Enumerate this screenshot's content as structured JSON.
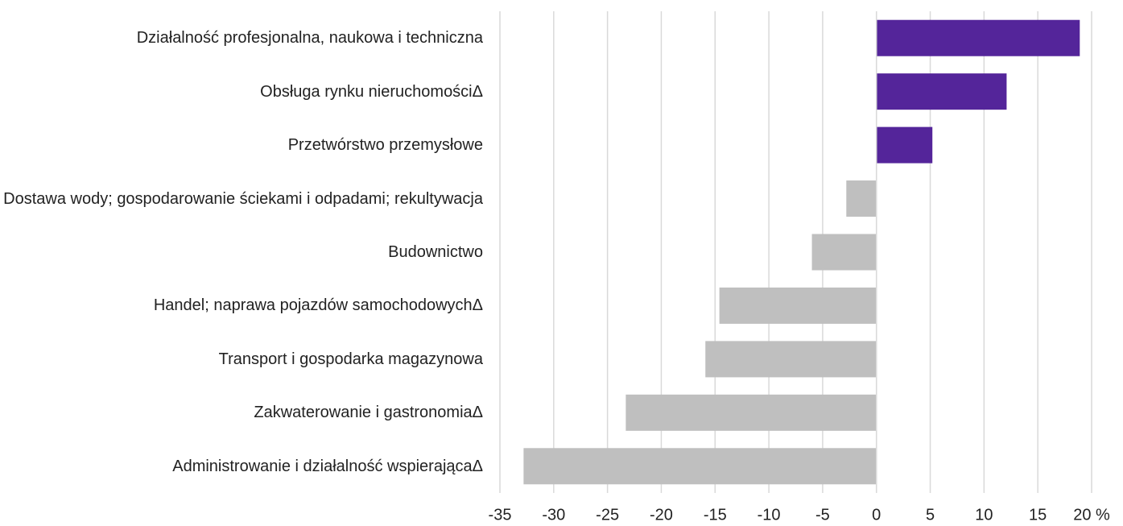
{
  "chart_data": {
    "type": "bar",
    "orientation": "horizontal",
    "categories": [
      "Działalność profesjonalna, naukowa i techniczna",
      "Obsługa rynku nieruchomościΔ",
      "Przetwórstwo przemysłowe",
      "Dostawa wody; gospodarowanie ściekami i odpadami; rekultywacja",
      "Budownictwo",
      "Handel; naprawa pojazdów samochodowychΔ",
      "Transport i gospodarka magazynowa",
      "Zakwaterowanie i gastronomiaΔ",
      "Administrowanie i działalność wspierającaΔ"
    ],
    "values": [
      18.9,
      12.1,
      5.2,
      -2.8,
      -6.0,
      -14.6,
      -15.9,
      -23.3,
      -32.8
    ],
    "colors": [
      "#54259a",
      "#54259a",
      "#54259a",
      "#bfbfbf",
      "#bfbfbf",
      "#bfbfbf",
      "#bfbfbf",
      "#bfbfbf",
      "#bfbfbf"
    ],
    "xlim": [
      -35,
      20
    ],
    "xticks": [
      -35,
      -30,
      -25,
      -20,
      -15,
      -10,
      -5,
      0,
      5,
      10,
      15,
      {
        "value": 20,
        "label": "20 %"
      }
    ],
    "grid": true
  }
}
